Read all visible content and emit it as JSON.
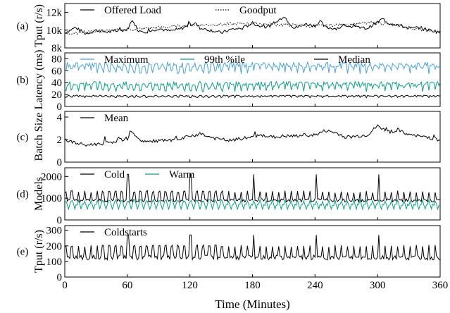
{
  "chart_data": [
    {
      "type": "line",
      "panel_label": "(a)",
      "ylabel": "Tput (r/s)",
      "yticks": [
        "8k",
        "10k",
        "12k"
      ],
      "ylim": [
        8000,
        13000
      ],
      "xlim": [
        0,
        360
      ],
      "series": [
        {
          "name": "Offered Load",
          "line": "solid",
          "color": "#000000",
          "x": [
            0,
            10,
            20,
            30,
            40,
            50,
            60,
            65,
            70,
            80,
            90,
            100,
            110,
            120,
            125,
            130,
            140,
            150,
            160,
            170,
            180,
            190,
            200,
            210,
            220,
            230,
            240,
            245,
            250,
            260,
            270,
            280,
            290,
            300,
            305,
            310,
            320,
            330,
            340,
            350,
            360
          ],
          "values": [
            9700,
            10300,
            9600,
            10000,
            9800,
            9900,
            10100,
            11200,
            10000,
            9800,
            10200,
            9900,
            10100,
            10600,
            10800,
            10200,
            10000,
            9700,
            10100,
            10200,
            10800,
            10300,
            10600,
            11600,
            10200,
            10700,
            10500,
            11000,
            10300,
            10200,
            10500,
            10300,
            10200,
            10900,
            11300,
            10800,
            10600,
            10200,
            10300,
            10000,
            9800
          ]
        },
        {
          "name": "Goodput",
          "line": "dotted",
          "color": "#000000",
          "x": [
            0,
            60,
            120,
            180,
            240,
            300,
            360
          ],
          "values": [
            9650,
            10050,
            10550,
            10750,
            10450,
            10850,
            9750
          ]
        }
      ]
    },
    {
      "type": "line",
      "panel_label": "(b)",
      "ylabel": "Latency (ms)",
      "yticks": [
        "0",
        "20",
        "40",
        "60",
        "80"
      ],
      "ylim": [
        0,
        90
      ],
      "xlim": [
        0,
        360
      ],
      "series": [
        {
          "name": "Maximum",
          "color": "#4aa3d6",
          "level": 70,
          "spikes": 9
        },
        {
          "name": "99th %ile",
          "color": "#0e9e86",
          "level": 38,
          "spikes": 8
        },
        {
          "name": "Median",
          "color": "#000000",
          "level": 18,
          "spikes": 2
        }
      ]
    },
    {
      "type": "line",
      "panel_label": "(c)",
      "ylabel": "Batch Size",
      "yticks": [
        "0",
        "2",
        "4"
      ],
      "ylim": [
        0,
        4.5
      ],
      "xlim": [
        0,
        360
      ],
      "series": [
        {
          "name": "Mean",
          "color": "#000000",
          "x": [
            0,
            10,
            20,
            30,
            40,
            50,
            60,
            65,
            70,
            80,
            90,
            100,
            110,
            120,
            130,
            140,
            150,
            160,
            170,
            180,
            190,
            200,
            210,
            220,
            230,
            240,
            250,
            260,
            270,
            280,
            290,
            300,
            310,
            320,
            330,
            340,
            350,
            360
          ],
          "values": [
            2.0,
            1.7,
            1.5,
            1.6,
            1.7,
            1.9,
            2.1,
            2.8,
            2.0,
            1.8,
            1.9,
            1.9,
            2.0,
            2.3,
            2.5,
            2.2,
            2.0,
            1.9,
            2.1,
            2.2,
            2.4,
            2.2,
            2.3,
            2.3,
            2.4,
            2.4,
            2.8,
            2.6,
            2.2,
            2.3,
            2.4,
            3.2,
            2.7,
            2.8,
            2.4,
            2.3,
            2.2,
            1.9
          ]
        }
      ]
    },
    {
      "type": "line",
      "panel_label": "(d)",
      "ylabel": "Models",
      "yticks": [
        "0",
        "1000",
        "2000"
      ],
      "ylim": [
        0,
        2400
      ],
      "xlim": [
        0,
        360
      ],
      "series": [
        {
          "name": "Cold",
          "color": "#000000",
          "level": 900,
          "peak": 1300,
          "big_peak": 2100
        },
        {
          "name": "Warm",
          "color": "#0e9e86",
          "level": 700,
          "peak": 900,
          "trough": 500
        }
      ]
    },
    {
      "type": "line",
      "panel_label": "(e)",
      "ylabel": "Tput (r/s)",
      "yticks": [
        "0",
        "100",
        "200",
        "300"
      ],
      "ylim": [
        0,
        330
      ],
      "xlim": [
        0,
        360
      ],
      "series": [
        {
          "name": "Coldstarts",
          "color": "#000000",
          "level": 125,
          "peak": 200,
          "big_peak": 270
        }
      ]
    }
  ],
  "x_axis": {
    "label": "Time (Minutes)",
    "ticks": [
      "0",
      "60",
      "120",
      "180",
      "240",
      "300",
      "360"
    ],
    "tick_values": [
      0,
      60,
      120,
      180,
      240,
      300,
      360
    ]
  }
}
